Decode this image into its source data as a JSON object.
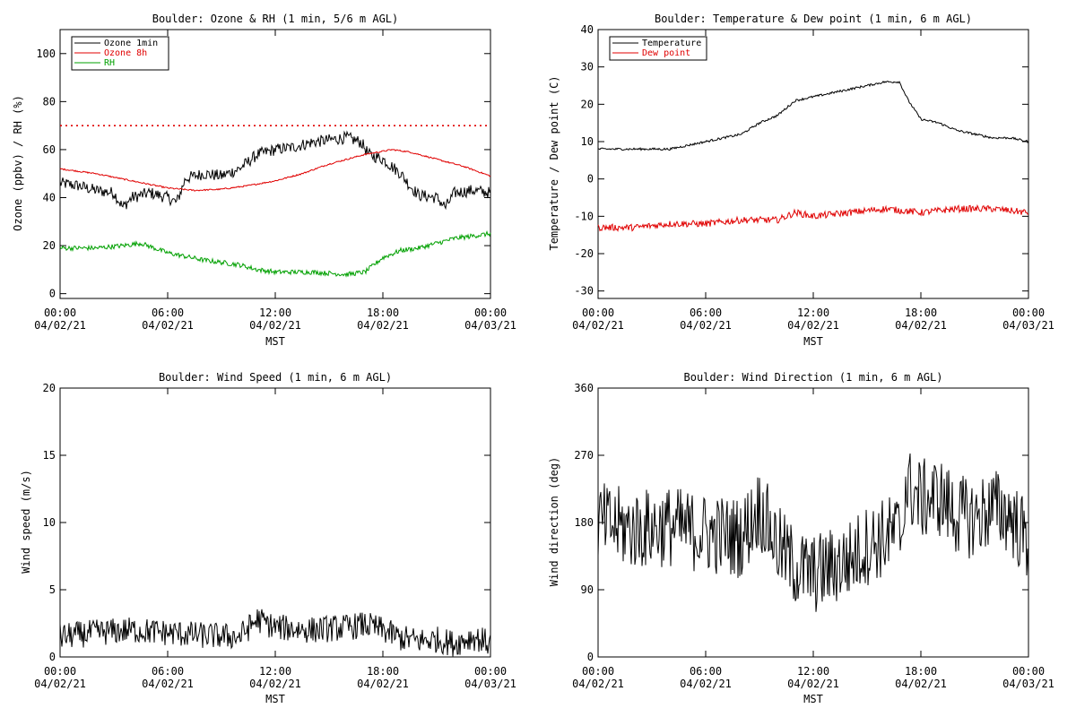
{
  "colors": {
    "black": "#000000",
    "red": "#e00000",
    "green": "#00a000"
  },
  "x_axis": {
    "tick_labels": [
      "00:00",
      "06:00",
      "12:00",
      "18:00",
      "00:00"
    ],
    "date_labels": [
      "04/02/21",
      "04/02/21",
      "04/02/21",
      "04/02/21",
      "04/03/21"
    ],
    "label": "MST"
  },
  "chart_data": [
    {
      "type": "line",
      "title": "Boulder: Ozone & RH (1 min, 5/6 m AGL)",
      "xlabel": "MST",
      "ylabel": "Ozone (ppbv) / RH (%)",
      "x_unit": "hours since 00:00 04/02/21 MST",
      "xlim": [
        0,
        24
      ],
      "ylim": [
        -2,
        110
      ],
      "yticks": [
        0,
        20,
        40,
        60,
        80,
        100
      ],
      "legend_position": "top-left",
      "reference_line": {
        "y": 70,
        "style": "dotted",
        "color": "#e00000"
      },
      "series": [
        {
          "name": "Ozone 1min",
          "color": "#000000",
          "noise": 2.5,
          "x": [
            0,
            1,
            2,
            3,
            3.5,
            4,
            5,
            6,
            6.5,
            7,
            8,
            9,
            10,
            11,
            12,
            13,
            14,
            15,
            16,
            16.8,
            17.2,
            18,
            19,
            19.5,
            20,
            21,
            21.5,
            22,
            23,
            24
          ],
          "y": [
            46,
            45,
            43,
            42,
            36,
            40,
            42,
            40,
            38,
            48,
            50,
            49,
            52,
            58,
            60,
            61,
            63,
            64,
            65,
            63,
            58,
            56,
            50,
            45,
            41,
            40,
            36,
            42,
            43,
            42
          ]
        },
        {
          "name": "Ozone 8h",
          "color": "#e00000",
          "noise": 0.3,
          "x": [
            0,
            2,
            4,
            6,
            7.5,
            9,
            10.5,
            12,
            13.5,
            15,
            17,
            18.5,
            19.5,
            21,
            22.5,
            24
          ],
          "y": [
            52,
            50,
            47,
            44,
            43,
            43.5,
            45,
            47,
            50,
            54,
            58,
            60,
            59,
            56,
            53,
            49
          ]
        },
        {
          "name": "RH",
          "color": "#00a000",
          "noise": 1.0,
          "x": [
            0,
            2,
            3.5,
            4.5,
            6,
            8,
            10,
            11,
            12,
            14,
            16,
            17,
            18,
            19,
            20,
            21,
            22,
            23,
            24
          ],
          "y": [
            19,
            19,
            20,
            21,
            17,
            14,
            12,
            10,
            9,
            9,
            8,
            9,
            15,
            18,
            19,
            21,
            23,
            24,
            25
          ]
        }
      ]
    },
    {
      "type": "line",
      "title": "Boulder: Temperature & Dew point (1 min, 6 m AGL)",
      "xlabel": "MST",
      "ylabel": "Temperature / Dew point (C)",
      "x_unit": "hours since 00:00 04/02/21 MST",
      "xlim": [
        0,
        24
      ],
      "ylim": [
        -32,
        40
      ],
      "yticks": [
        -30,
        -20,
        -10,
        0,
        10,
        20,
        30,
        40
      ],
      "legend_position": "top-left",
      "series": [
        {
          "name": "Temperature",
          "color": "#000000",
          "noise": 0.3,
          "x": [
            0,
            2,
            4,
            5,
            6,
            7,
            8,
            9,
            10,
            11,
            12,
            13,
            14,
            15,
            16,
            16.8,
            17.3,
            18,
            19,
            20,
            21,
            22,
            23,
            24
          ],
          "y": [
            8,
            8,
            8,
            9,
            10,
            11,
            12,
            15,
            17,
            21,
            22,
            23,
            24,
            25,
            26,
            26,
            21,
            16,
            15,
            13,
            12,
            11,
            11,
            10
          ]
        },
        {
          "name": "Dew point",
          "color": "#e00000",
          "noise": 0.9,
          "x": [
            0,
            2,
            4,
            6,
            8,
            10,
            11,
            12,
            14,
            16,
            18,
            20,
            22,
            24
          ],
          "y": [
            -13,
            -13,
            -12,
            -12,
            -11,
            -11,
            -9,
            -10,
            -9,
            -8,
            -9,
            -8,
            -8,
            -9
          ]
        }
      ]
    },
    {
      "type": "line",
      "title": "Boulder: Wind Speed (1 min, 6 m AGL)",
      "xlabel": "MST",
      "ylabel": "Wind speed (m/s)",
      "x_unit": "hours since 00:00 04/02/21 MST",
      "xlim": [
        0,
        24
      ],
      "ylim": [
        0,
        20
      ],
      "yticks": [
        0,
        5,
        10,
        15,
        20
      ],
      "series": [
        {
          "color": "#000000",
          "noise": 1.0,
          "x": [
            0,
            2,
            4,
            6,
            8,
            10,
            11,
            12,
            14,
            16,
            17,
            18,
            19,
            20,
            21,
            22,
            23,
            24
          ],
          "y": [
            1.5,
            1.8,
            2.0,
            1.8,
            1.6,
            1.5,
            2.8,
            2.2,
            2.0,
            2.2,
            2.4,
            2.0,
            1.4,
            1.2,
            1.3,
            1.0,
            1.5,
            1.0
          ]
        }
      ]
    },
    {
      "type": "line",
      "title": "Boulder: Wind Direction (1 min, 6 m AGL)",
      "xlabel": "MST",
      "ylabel": "Wind direction (deg)",
      "x_unit": "hours since 00:00 04/02/21 MST",
      "xlim": [
        0,
        24
      ],
      "ylim": [
        0,
        360
      ],
      "yticks": [
        0,
        90,
        180,
        270,
        360
      ],
      "series": [
        {
          "color": "#000000",
          "noise": 55,
          "x": [
            0,
            2,
            4,
            6,
            8,
            9,
            10,
            11,
            12,
            13,
            14,
            15,
            16,
            17,
            17.1,
            18,
            19,
            20,
            21,
            22,
            23,
            24
          ],
          "y": [
            180,
            170,
            175,
            165,
            160,
            200,
            150,
            120,
            110,
            120,
            130,
            150,
            160,
            170,
            230,
            210,
            215,
            190,
            185,
            200,
            190,
            150
          ]
        }
      ]
    }
  ]
}
